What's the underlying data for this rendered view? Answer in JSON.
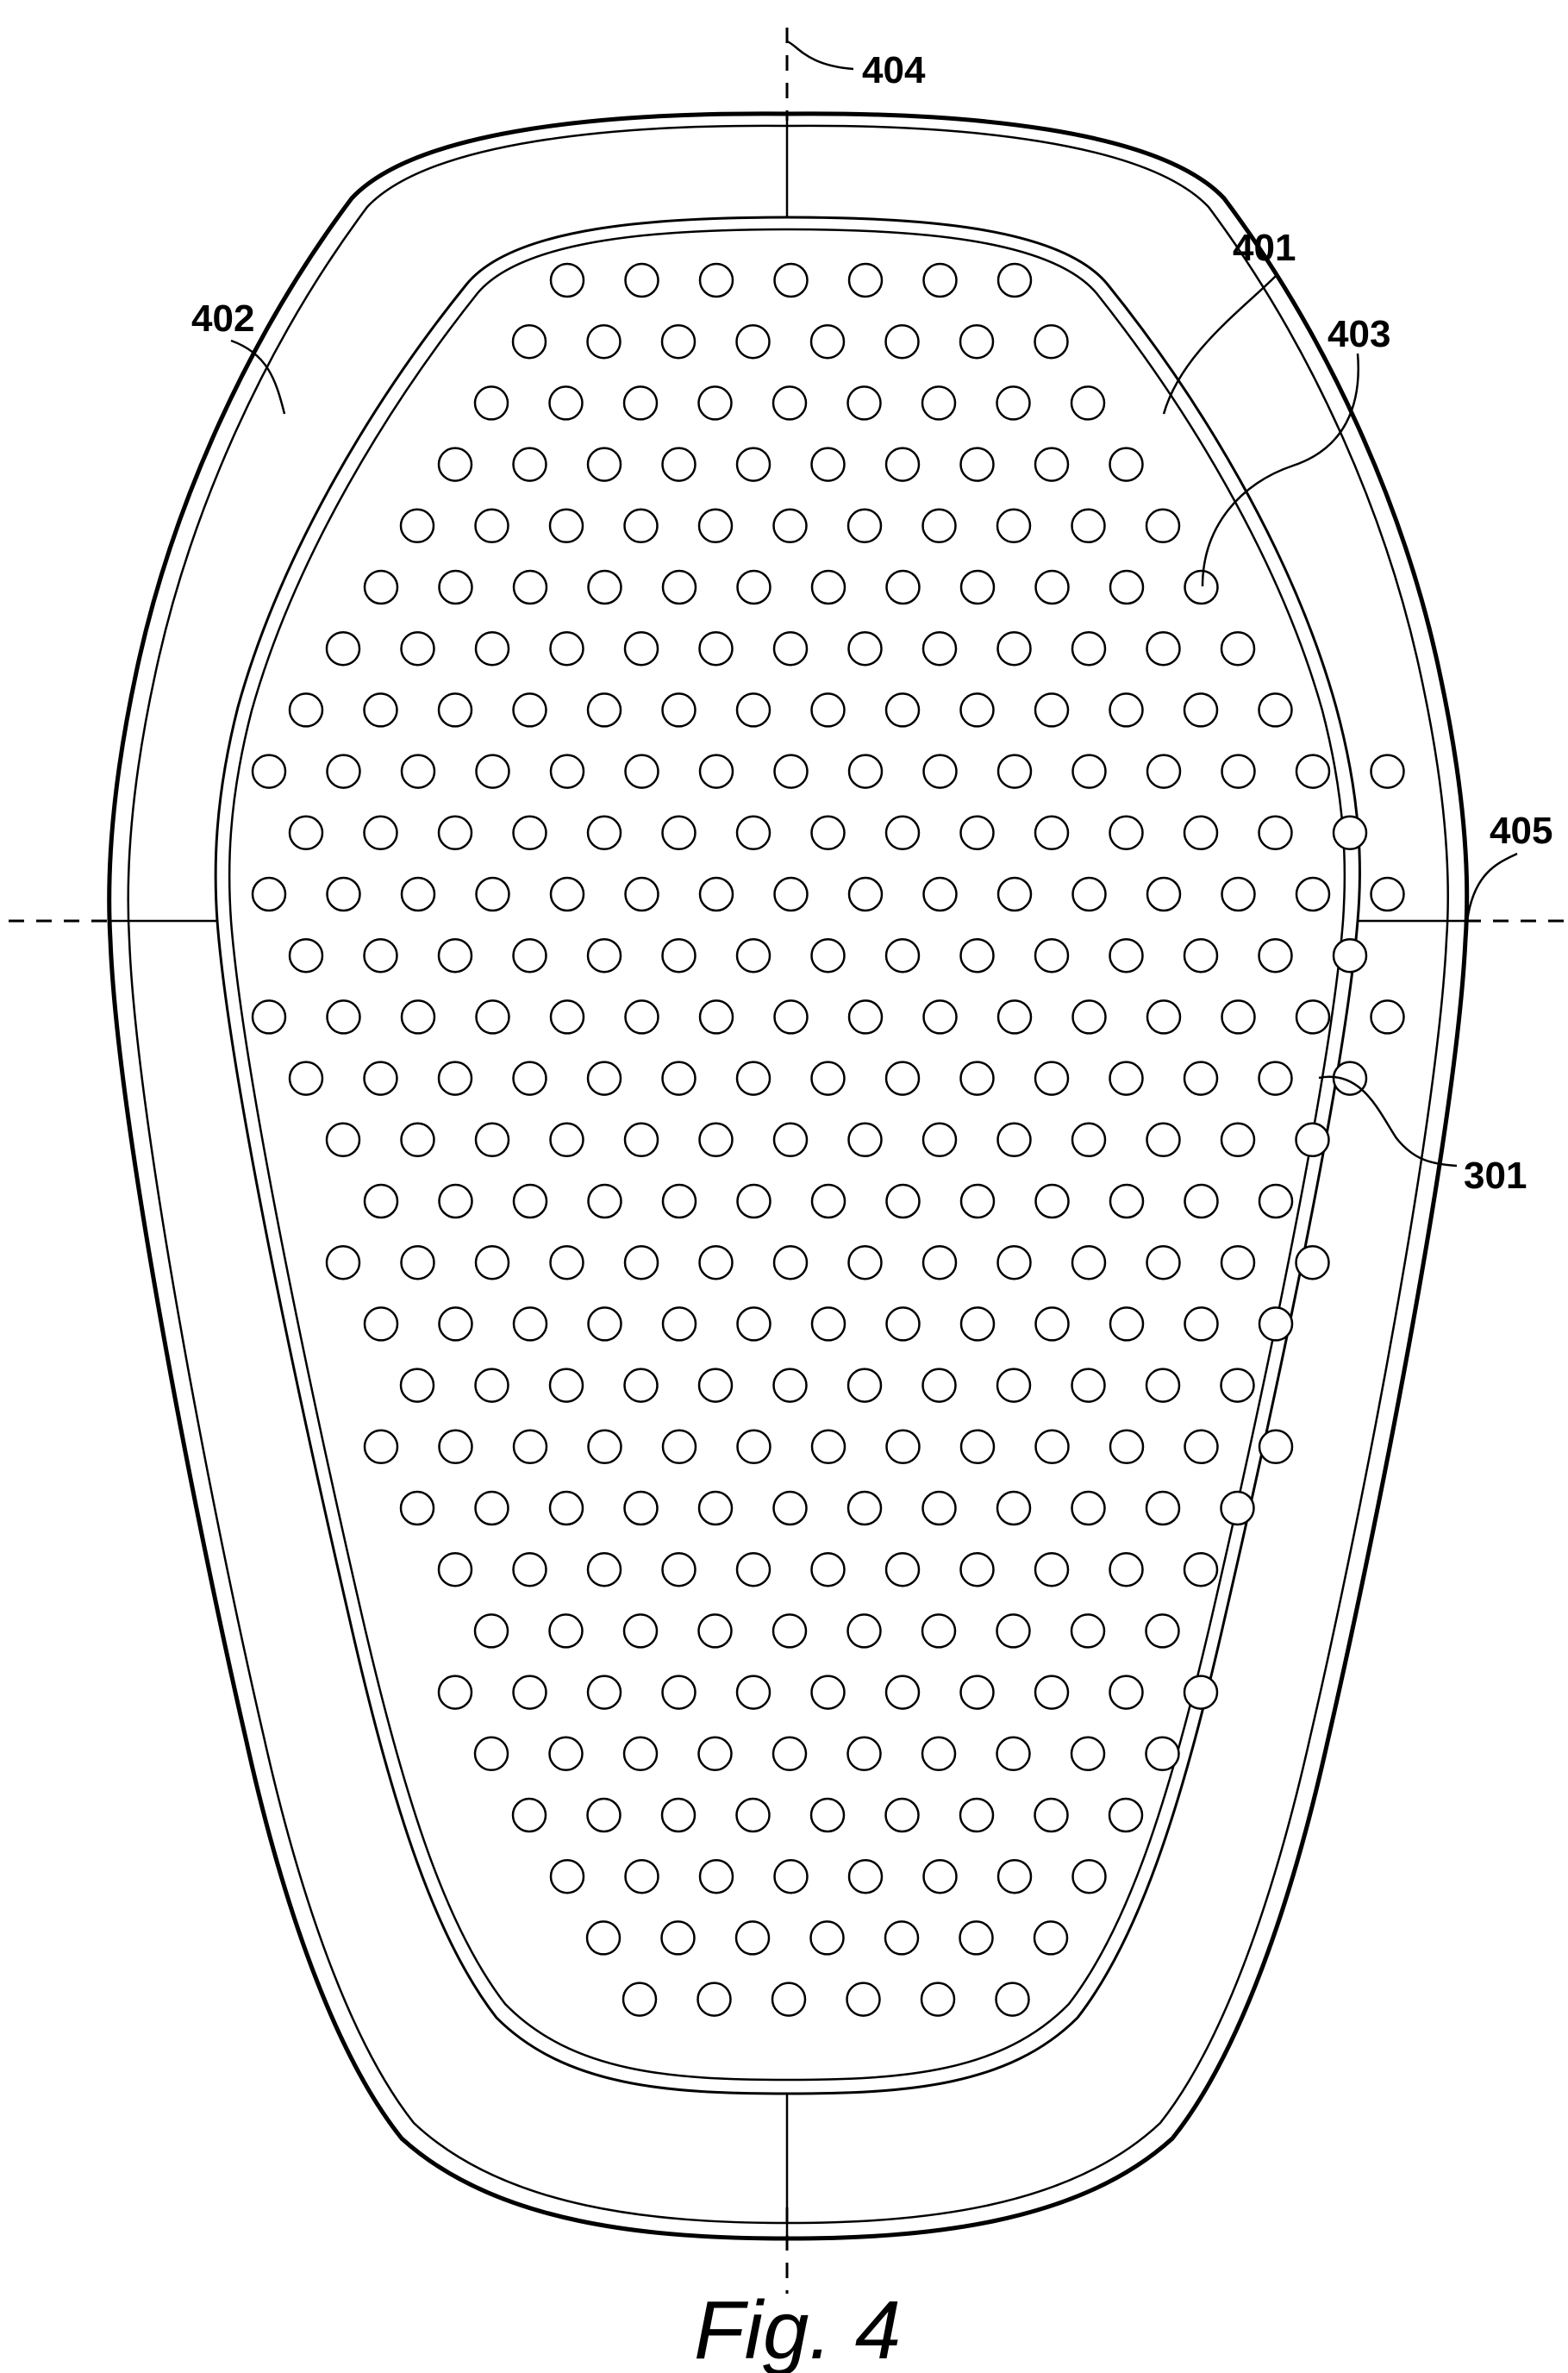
{
  "figure": {
    "caption": "Fig. 4",
    "references": {
      "r404": "404",
      "r401": "401",
      "r402": "402",
      "r403": "403",
      "r405": "405",
      "r301": "301"
    }
  }
}
